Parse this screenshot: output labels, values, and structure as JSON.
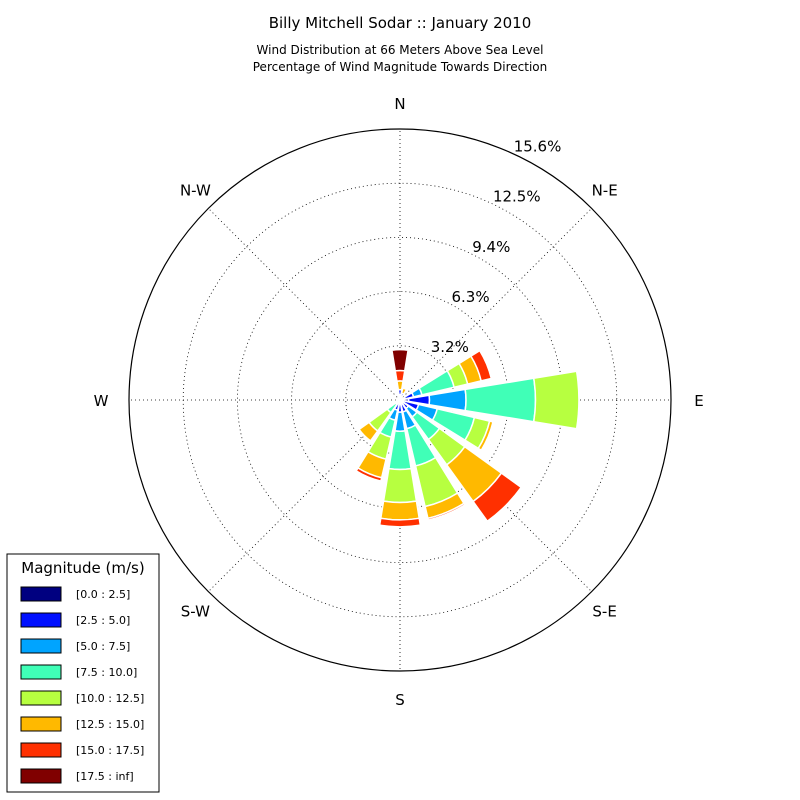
{
  "chart_data": {
    "type": "windrose",
    "title": "Billy Mitchell Sodar :: January 2010",
    "subtitle_lines": [
      "Wind Distribution at 66 Meters Above Sea Level",
      "Percentage of Wind Magnitude Towards Direction"
    ],
    "direction_labels": [
      {
        "angle": 0,
        "label": "N"
      },
      {
        "angle": 45,
        "label": "N-E"
      },
      {
        "angle": 90,
        "label": "E"
      },
      {
        "angle": 135,
        "label": "S-E"
      },
      {
        "angle": 180,
        "label": "S"
      },
      {
        "angle": 225,
        "label": "S-W"
      },
      {
        "angle": 270,
        "label": "W"
      },
      {
        "angle": 315,
        "label": "N-W"
      }
    ],
    "radial_ticks": [
      {
        "value": 3.12,
        "label": "3.2%"
      },
      {
        "value": 6.24,
        "label": "6.3%"
      },
      {
        "value": 9.36,
        "label": "9.4%"
      },
      {
        "value": 12.48,
        "label": "12.5%"
      },
      {
        "value": 15.6,
        "label": "15.6%"
      }
    ],
    "rmax": 15.6,
    "sector_width_deg": 22.5,
    "legend": {
      "title": "Magnitude (m/s)",
      "bins": [
        {
          "label": "[0.0 : 2.5]",
          "color": "#000080"
        },
        {
          "label": "[2.5 : 5.0]",
          "color": "#0010ff"
        },
        {
          "label": "[5.0 : 7.5]",
          "color": "#00a4ff"
        },
        {
          "label": "[7.5 : 10.0]",
          "color": "#40ffb7"
        },
        {
          "label": "[10.0 : 12.5]",
          "color": "#b7ff40"
        },
        {
          "label": "[12.5 : 15.0]",
          "color": "#ffb900"
        },
        {
          "label": "[15.0 : 17.5]",
          "color": "#ff3000"
        },
        {
          "label": "[17.5 : inf]",
          "color": "#800000"
        }
      ]
    },
    "sectors": [
      {
        "direction": 0,
        "values": [
          0.3,
          0.3,
          0,
          0,
          0,
          0.5,
          0.6,
          1.2
        ]
      },
      {
        "direction": 22.5,
        "values": [
          0.2,
          0.2,
          0,
          0,
          0,
          0.3,
          0,
          0
        ]
      },
      {
        "direction": 67.5,
        "values": [
          0.3,
          0.5,
          0.5,
          1.9,
          0.8,
          0.8,
          0.6,
          0
        ]
      },
      {
        "direction": 90,
        "values": [
          0.5,
          1.2,
          2.1,
          4.0,
          2.5,
          0,
          0,
          0
        ]
      },
      {
        "direction": 112.5,
        "values": [
          0.2,
          0.9,
          1.1,
          2.2,
          0.9,
          0.2,
          0,
          0
        ]
      },
      {
        "direction": 135,
        "values": [
          0.2,
          0.4,
          0.6,
          1.6,
          1.8,
          2.6,
          1.4,
          0
        ]
      },
      {
        "direction": 157.5,
        "values": [
          0.2,
          0.5,
          1.0,
          2.2,
          2.4,
          0.7,
          0.1,
          0
        ]
      },
      {
        "direction": 180,
        "values": [
          0.1,
          0.6,
          1.1,
          2.2,
          1.9,
          1.0,
          0.4,
          0
        ]
      },
      {
        "direction": 202.5,
        "values": [
          0.2,
          0.4,
          0.6,
          1.0,
          1.3,
          1.1,
          0.2,
          0
        ]
      },
      {
        "direction": 225,
        "values": [
          0.1,
          0.2,
          0,
          0.6,
          1.3,
          0.7,
          0,
          0
        ]
      },
      {
        "direction": 247.5,
        "values": [
          0.1,
          0,
          0.1,
          0,
          0,
          0,
          0,
          0
        ]
      },
      {
        "direction": 270,
        "values": [
          0.1,
          0,
          0.1,
          0,
          0,
          0,
          0,
          0
        ]
      },
      {
        "direction": 337.5,
        "values": [
          0.1,
          0,
          0.1,
          0,
          0,
          0,
          0,
          0
        ]
      }
    ]
  }
}
